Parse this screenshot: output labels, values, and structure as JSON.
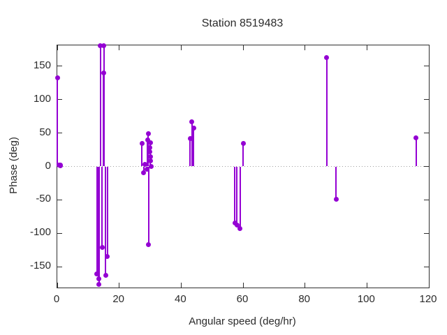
{
  "chart_data": {
    "type": "scatter",
    "style": "impulses-with-points (stem plot)",
    "title": "Station 8519483",
    "xlabel": "Angular speed (deg/hr)",
    "ylabel": "Phase (deg)",
    "xlim": [
      0,
      120
    ],
    "ylim": [
      -181,
      181
    ],
    "x_ticks": [
      0,
      20,
      40,
      60,
      80,
      100,
      120
    ],
    "y_ticks": [
      -150,
      -100,
      -50,
      0,
      50,
      100,
      150
    ],
    "grid": false,
    "zero_line_dotted": true,
    "legend": "none",
    "series_color": "#9400d3",
    "points": [
      [
        0.04,
        132
      ],
      [
        0.5,
        2
      ],
      [
        1.0,
        1
      ],
      [
        1.1,
        2
      ],
      [
        12.85,
        -161
      ],
      [
        13.4,
        -168
      ],
      [
        13.47,
        -176
      ],
      [
        13.94,
        180
      ],
      [
        14.5,
        -121
      ],
      [
        14.96,
        140
      ],
      [
        15.04,
        180
      ],
      [
        15.59,
        -163
      ],
      [
        16.14,
        -135
      ],
      [
        27.4,
        34
      ],
      [
        27.9,
        -9
      ],
      [
        28.4,
        3
      ],
      [
        29.0,
        -4
      ],
      [
        29.2,
        40
      ],
      [
        29.4,
        49
      ],
      [
        29.53,
        -117
      ],
      [
        29.9,
        28
      ],
      [
        29.95,
        22
      ],
      [
        30.0,
        15
      ],
      [
        30.05,
        8
      ],
      [
        30.1,
        35
      ],
      [
        30.4,
        0
      ],
      [
        42.9,
        42
      ],
      [
        43.5,
        67
      ],
      [
        44.0,
        57
      ],
      [
        57.4,
        -85
      ],
      [
        58.0,
        -88
      ],
      [
        59.0,
        -93
      ],
      [
        60.0,
        34
      ],
      [
        87.0,
        163
      ],
      [
        90.0,
        -49
      ],
      [
        115.9,
        43
      ]
    ]
  },
  "colors": {
    "series": "#9400d3",
    "border": "#2f2f2f",
    "text": "#2b2b2b",
    "zero_line": "#9e9e9e",
    "background": "#ffffff"
  }
}
